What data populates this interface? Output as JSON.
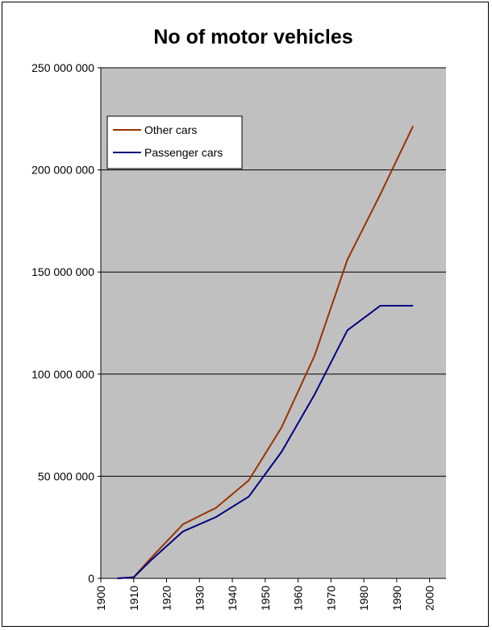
{
  "chart_data": {
    "type": "line",
    "title": "No of motor vehicles",
    "xlabel": "",
    "ylabel": "",
    "categories": [
      "1900",
      "1910",
      "1920",
      "1930",
      "1940",
      "1950",
      "1960",
      "1970",
      "1980",
      "1990",
      "2000"
    ],
    "x": [
      1905,
      1910,
      1920,
      1930,
      1940,
      1950,
      1960,
      1970,
      1980,
      1990,
      2000
    ],
    "xlim": [
      1900,
      2005
    ],
    "ylim": [
      0,
      250000000
    ],
    "yticks": [
      {
        "value": 0,
        "label": "0"
      },
      {
        "value": 50000000,
        "label": "50 000 000"
      },
      {
        "value": 100000000,
        "label": "100 000 000"
      },
      {
        "value": 150000000,
        "label": "150 000 000"
      },
      {
        "value": 200000000,
        "label": "200 000 000"
      },
      {
        "value": 250000000,
        "label": "250 000 000"
      }
    ],
    "grid": true,
    "legend_position": "top-left",
    "background_color": "#c0c0c0",
    "series": [
      {
        "name": "Other cars",
        "color": "#993300",
        "points": [
          [
            1905,
            0
          ],
          [
            1910,
            600000
          ],
          [
            1915,
            9500000
          ],
          [
            1925,
            26500000
          ],
          [
            1935,
            34500000
          ],
          [
            1945,
            48000000
          ],
          [
            1955,
            74000000
          ],
          [
            1965,
            109000000
          ],
          [
            1975,
            156000000
          ],
          [
            1985,
            188000000
          ],
          [
            1995,
            221500000
          ]
        ]
      },
      {
        "name": "Passenger cars",
        "color": "#000080",
        "points": [
          [
            1905,
            0
          ],
          [
            1910,
            500000
          ],
          [
            1915,
            8500000
          ],
          [
            1925,
            23000000
          ],
          [
            1935,
            30000000
          ],
          [
            1945,
            40000000
          ],
          [
            1955,
            62000000
          ],
          [
            1965,
            90000000
          ],
          [
            1975,
            121500000
          ],
          [
            1985,
            133500000
          ],
          [
            1995,
            133500000
          ]
        ]
      }
    ]
  }
}
